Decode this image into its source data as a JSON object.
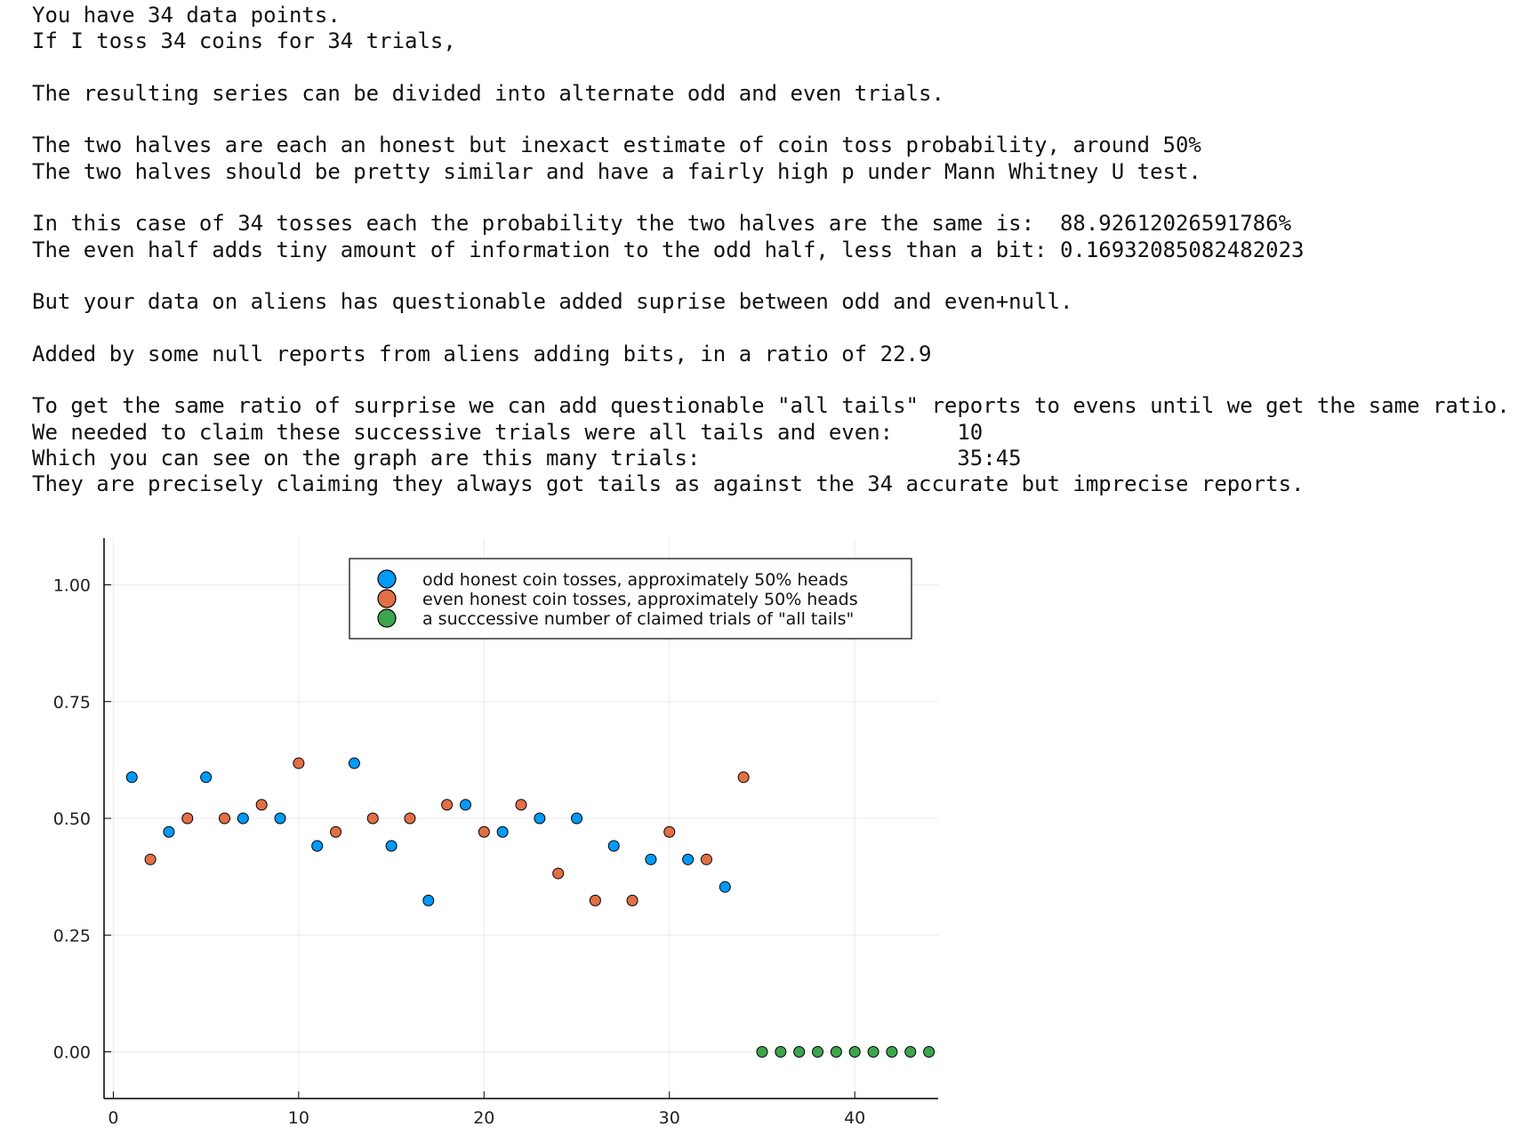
{
  "output_text": {
    "lines": [
      "You have 34 data points.",
      "If I toss 34 coins for 34 trials,",
      "",
      "The resulting series can be divided into alternate odd and even trials.",
      "",
      "The two halves are each an honest but inexact estimate of coin toss probability, around 50%",
      "The two halves should be pretty similar and have a fairly high p under Mann Whitney U test.",
      "",
      "In this case of 34 tosses each the probability the two halves are the same is:  88.92612026591786%",
      "The even half adds tiny amount of information to the odd half, less than a bit: 0.16932085082482023",
      "",
      "But your data on aliens has questionable added suprise between odd and even+null.",
      "",
      "Added by some null reports from aliens adding bits, in a ratio of 22.9",
      "",
      "To get the same ratio of surprise we can add questionable \"all tails\" reports to evens until we get the same ratio.",
      "We needed to claim these successive trials were all tails and even:     10",
      "Which you can see on the graph are this many trials:                    35:45",
      "They are precisely claiming they always got tails as against the 34 accurate but imprecise reports."
    ]
  },
  "chart_data": {
    "type": "scatter",
    "title": "",
    "xlabel": "",
    "ylabel": "",
    "xlim": [
      -0.5,
      44.5
    ],
    "ylim": [
      -0.1,
      1.1
    ],
    "xticks": [
      0,
      10,
      20,
      30,
      40
    ],
    "xtick_labels": [
      "0",
      "10",
      "20",
      "30",
      "40"
    ],
    "yticks": [
      0.0,
      0.25,
      0.5,
      0.75,
      1.0
    ],
    "ytick_labels": [
      "0.00",
      "0.25",
      "0.50",
      "0.75",
      "1.00"
    ],
    "grid": true,
    "legend_position": "top",
    "series": [
      {
        "name": "odd honest coin tosses, approximately 50% heads",
        "color": "#009af9",
        "x": [
          1,
          3,
          5,
          7,
          9,
          11,
          13,
          15,
          17,
          19,
          21,
          23,
          25,
          27,
          29,
          31,
          33
        ],
        "y": [
          0.588,
          0.471,
          0.588,
          0.5,
          0.5,
          0.441,
          0.618,
          0.441,
          0.324,
          0.529,
          0.471,
          0.5,
          0.5,
          0.441,
          0.412,
          0.412,
          0.353
        ]
      },
      {
        "name": "even honest coin tosses, approximately 50% heads",
        "color": "#e26f46",
        "x": [
          2,
          4,
          6,
          8,
          10,
          12,
          14,
          16,
          18,
          20,
          22,
          24,
          26,
          28,
          30,
          32,
          34
        ],
        "y": [
          0.412,
          0.5,
          0.5,
          0.529,
          0.618,
          0.471,
          0.5,
          0.5,
          0.529,
          0.471,
          0.529,
          0.382,
          0.324,
          0.324,
          0.471,
          0.412,
          0.588
        ]
      },
      {
        "name": "a succcessive number of claimed trials of \"all tails\"",
        "color": "#3da44d",
        "x": [
          35,
          36,
          37,
          38,
          39,
          40,
          41,
          42,
          43,
          44
        ],
        "y": [
          0,
          0,
          0,
          0,
          0,
          0,
          0,
          0,
          0,
          0
        ]
      }
    ]
  }
}
